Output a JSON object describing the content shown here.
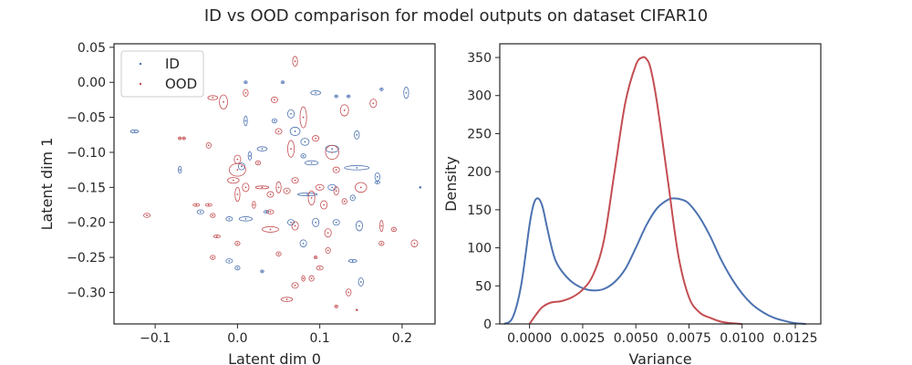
{
  "figure": {
    "title": "ID vs OOD comparison for model outputs on dataset CIFAR10"
  },
  "colors": {
    "id": "#4c72b0",
    "ood": "#c44e52",
    "axes": "#262626"
  },
  "chart_data": [
    {
      "type": "scatter",
      "title": "",
      "xlabel": "Latent dim 0",
      "ylabel": "Latent dim 1",
      "xlim": [
        -0.15,
        0.24
      ],
      "ylim": [
        -0.345,
        0.055
      ],
      "xticks": [
        -0.1,
        0.0,
        0.1,
        0.2
      ],
      "xtick_labels": [
        "−0.1",
        "0.0",
        "0.1",
        "0.2"
      ],
      "yticks": [
        0.05,
        0.0,
        -0.05,
        -0.1,
        -0.15,
        -0.2,
        -0.25,
        -0.3
      ],
      "ytick_labels": [
        "0.05",
        "0.00",
        "−0.05",
        "−0.10",
        "−0.15",
        "−0.20",
        "−0.25",
        "−0.30"
      ],
      "grid": false,
      "legend": {
        "position": "top-left",
        "entries": [
          "ID",
          "OOD"
        ]
      },
      "series": [
        {
          "name": "ID",
          "color": "#4c72b0",
          "points": [
            [
              0.205,
              -0.015,
              0.003,
              0.008
            ],
            [
              0.145,
              -0.075,
              0.003,
              0.006
            ],
            [
              0.148,
              -0.205,
              0.004,
              0.007
            ],
            [
              0.17,
              -0.135,
              0.003,
              0.006
            ],
            [
              0.145,
              -0.122,
              0.015,
              0.003
            ],
            [
              0.115,
              -0.095,
              0.008,
              0.005
            ],
            [
              0.095,
              -0.015,
              0.006,
              0.003
            ],
            [
              0.082,
              -0.085,
              0.005,
              0.005
            ],
            [
              0.07,
              -0.07,
              0.006,
              0.006
            ],
            [
              0.08,
              -0.105,
              0.003,
              0.003
            ],
            [
              0.09,
              -0.115,
              0.008,
              0.003
            ],
            [
              0.085,
              -0.16,
              0.012,
              0.002
            ],
            [
              0.03,
              -0.095,
              0.006,
              0.003
            ],
            [
              0.005,
              -0.12,
              0.004,
              0.005
            ],
            [
              -0.125,
              -0.07,
              0.005,
              0.002
            ],
            [
              -0.07,
              -0.125,
              0.002,
              0.005
            ],
            [
              -0.045,
              -0.185,
              0.004,
              0.003
            ],
            [
              -0.01,
              -0.195,
              0.004,
              0.003
            ],
            [
              0.01,
              -0.195,
              0.008,
              0.003
            ],
            [
              -0.01,
              -0.255,
              0.004,
              0.003
            ],
            [
              0.0,
              -0.265,
              0.003,
              0.003
            ],
            [
              0.065,
              -0.2,
              0.004,
              0.004
            ],
            [
              0.08,
              -0.23,
              0.004,
              0.005
            ],
            [
              0.12,
              -0.2,
              0.004,
              0.004
            ],
            [
              0.14,
              -0.255,
              0.005,
              0.002
            ],
            [
              0.15,
              -0.285,
              0.003,
              0.006
            ],
            [
              0.095,
              -0.2,
              0.004,
              0.006
            ],
            [
              0.065,
              -0.045,
              0.004,
              0.006
            ],
            [
              0.045,
              -0.055,
              0.003,
              0.003
            ],
            [
              0.01,
              -0.055,
              0.002,
              0.007
            ],
            [
              0.015,
              -0.105,
              0.002,
              0.006
            ],
            [
              0.115,
              -0.15,
              0.005,
              0.004
            ],
            [
              0.035,
              -0.185,
              0.003,
              0.002
            ],
            [
              0.12,
              -0.02,
              0.002,
              0.002
            ],
            [
              0.135,
              -0.02,
              0.002,
              0.002
            ],
            [
              0.175,
              -0.01,
              0.002,
              0.002
            ],
            [
              0.01,
              0.0,
              0.002,
              0.002
            ],
            [
              0.055,
              0.0,
              0.002,
              0.002
            ],
            [
              0.03,
              -0.27,
              0.002,
              0.002
            ],
            [
              0.17,
              -0.143,
              0.003,
              0.002
            ],
            [
              0.222,
              -0.15,
              0.001,
              0.001
            ],
            [
              0.14,
              -0.165,
              0.003,
              0.004
            ]
          ]
        },
        {
          "name": "OOD",
          "color": "#c44e52",
          "points": [
            [
              0.07,
              0.03,
              0.003,
              0.007
            ],
            [
              -0.03,
              -0.022,
              0.006,
              0.003
            ],
            [
              -0.017,
              -0.028,
              0.005,
              0.01
            ],
            [
              0.01,
              -0.015,
              0.003,
              0.005
            ],
            [
              0.045,
              -0.025,
              0.004,
              0.004
            ],
            [
              0.08,
              -0.05,
              0.004,
              0.015
            ],
            [
              0.13,
              -0.04,
              0.005,
              0.008
            ],
            [
              0.165,
              -0.03,
              0.004,
              0.006
            ],
            [
              0.05,
              -0.07,
              0.004,
              0.004
            ],
            [
              0.065,
              -0.095,
              0.004,
              0.012
            ],
            [
              0.095,
              -0.08,
              0.004,
              0.004
            ],
            [
              0.115,
              -0.1,
              0.008,
              0.01
            ],
            [
              0.0,
              -0.11,
              0.004,
              0.006
            ],
            [
              -0.035,
              -0.09,
              0.003,
              0.004
            ],
            [
              -0.065,
              -0.08,
              0.002,
              0.002
            ],
            [
              0.0,
              -0.125,
              0.01,
              0.009
            ],
            [
              -0.005,
              -0.14,
              0.007,
              0.004
            ],
            [
              0.01,
              -0.15,
              0.004,
              0.006
            ],
            [
              0.03,
              -0.15,
              0.008,
              0.002
            ],
            [
              0.05,
              -0.15,
              0.003,
              0.008
            ],
            [
              0.07,
              -0.14,
              0.004,
              0.004
            ],
            [
              0.1,
              -0.15,
              0.005,
              0.004
            ],
            [
              0.12,
              -0.155,
              0.003,
              0.006
            ],
            [
              0.15,
              -0.15,
              0.007,
              0.007
            ],
            [
              -0.11,
              -0.19,
              0.004,
              0.003
            ],
            [
              -0.05,
              -0.175,
              0.004,
              0.002
            ],
            [
              -0.03,
              -0.19,
              0.003,
              0.003
            ],
            [
              0.0,
              -0.16,
              0.003,
              0.01
            ],
            [
              0.02,
              -0.175,
              0.002,
              0.005
            ],
            [
              0.04,
              -0.16,
              0.004,
              0.004
            ],
            [
              0.06,
              -0.155,
              0.004,
              0.004
            ],
            [
              0.09,
              -0.165,
              0.004,
              0.01
            ],
            [
              0.105,
              -0.175,
              0.004,
              0.006
            ],
            [
              0.13,
              -0.17,
              0.003,
              0.004
            ],
            [
              0.04,
              -0.21,
              0.01,
              0.004
            ],
            [
              0.07,
              -0.205,
              0.004,
              0.006
            ],
            [
              0.11,
              -0.215,
              0.004,
              0.006
            ],
            [
              0.175,
              -0.205,
              0.002,
              0.008
            ],
            [
              0.19,
              -0.21,
              0.003,
              0.003
            ],
            [
              0.215,
              -0.23,
              0.004,
              0.005
            ],
            [
              0.175,
              -0.23,
              0.003,
              0.003
            ],
            [
              0.11,
              -0.24,
              0.003,
              0.004
            ],
            [
              0.095,
              -0.25,
              0.002,
              0.002
            ],
            [
              0.08,
              -0.28,
              0.002,
              0.004
            ],
            [
              0.09,
              -0.28,
              0.003,
              0.004
            ],
            [
              0.1,
              -0.265,
              0.004,
              0.003
            ],
            [
              0.07,
              -0.29,
              0.004,
              0.004
            ],
            [
              0.06,
              -0.31,
              0.007,
              0.003
            ],
            [
              0.12,
              -0.32,
              0.002,
              0.002
            ],
            [
              0.135,
              -0.3,
              0.003,
              0.005
            ],
            [
              0.145,
              -0.325,
              0.001,
              0.001
            ],
            [
              -0.03,
              -0.25,
              0.003,
              0.003
            ],
            [
              -0.025,
              -0.22,
              0.004,
              0.002
            ],
            [
              -0.035,
              -0.175,
              0.004,
              0.002
            ],
            [
              0.0,
              -0.23,
              0.003,
              0.003
            ],
            [
              0.05,
              -0.245,
              0.003,
              0.003
            ],
            [
              -0.07,
              -0.08,
              0.002,
              0.002
            ],
            [
              0.025,
              -0.115,
              0.003,
              0.003
            ],
            [
              0.04,
              -0.185,
              0.004,
              0.003
            ],
            [
              0.12,
              -0.125,
              0.004,
              0.004
            ]
          ]
        }
      ]
    },
    {
      "type": "line",
      "title": "",
      "xlabel": "Variance",
      "ylabel": "Density",
      "xlim": [
        -0.0014,
        0.0137
      ],
      "ylim": [
        0,
        368
      ],
      "xticks": [
        0.0,
        0.0025,
        0.005,
        0.0075,
        0.01,
        0.0125
      ],
      "xtick_labels": [
        "0.0000",
        "0.0025",
        "0.0050",
        "0.0075",
        "0.0100",
        "0.0125"
      ],
      "yticks": [
        0,
        50,
        100,
        150,
        200,
        250,
        300,
        350
      ],
      "ytick_labels": [
        "0",
        "50",
        "100",
        "150",
        "200",
        "250",
        "300",
        "350"
      ],
      "grid": false,
      "series": [
        {
          "name": "ID",
          "color": "#4c72b0",
          "x": [
            -0.0012,
            -0.0008,
            -0.0004,
            0.0,
            0.0002,
            0.0004,
            0.0006,
            0.0008,
            0.001,
            0.0012,
            0.0015,
            0.002,
            0.0025,
            0.003,
            0.0035,
            0.004,
            0.0045,
            0.005,
            0.0055,
            0.006,
            0.0065,
            0.0068,
            0.0072,
            0.0075,
            0.008,
            0.0085,
            0.009,
            0.0095,
            0.01,
            0.0105,
            0.011,
            0.0115,
            0.012,
            0.0125,
            0.013
          ],
          "y": [
            0,
            8,
            50,
            130,
            158,
            165,
            155,
            130,
            105,
            85,
            70,
            55,
            47,
            44,
            46,
            55,
            72,
            100,
            130,
            152,
            163,
            165,
            163,
            158,
            140,
            115,
            85,
            60,
            40,
            25,
            15,
            8,
            4,
            1,
            0
          ]
        },
        {
          "name": "OOD",
          "color": "#c44e52",
          "x": [
            0.0,
            0.0003,
            0.0006,
            0.001,
            0.0015,
            0.002,
            0.0025,
            0.003,
            0.0035,
            0.004,
            0.0045,
            0.005,
            0.0053,
            0.0055,
            0.0057,
            0.006,
            0.0065,
            0.007,
            0.0075,
            0.008,
            0.0085,
            0.009,
            0.0095,
            0.01
          ],
          "y": [
            0,
            12,
            22,
            28,
            30,
            35,
            45,
            65,
            110,
            200,
            290,
            340,
            350,
            348,
            335,
            290,
            190,
            90,
            35,
            15,
            8,
            3,
            1,
            0
          ]
        }
      ]
    }
  ]
}
